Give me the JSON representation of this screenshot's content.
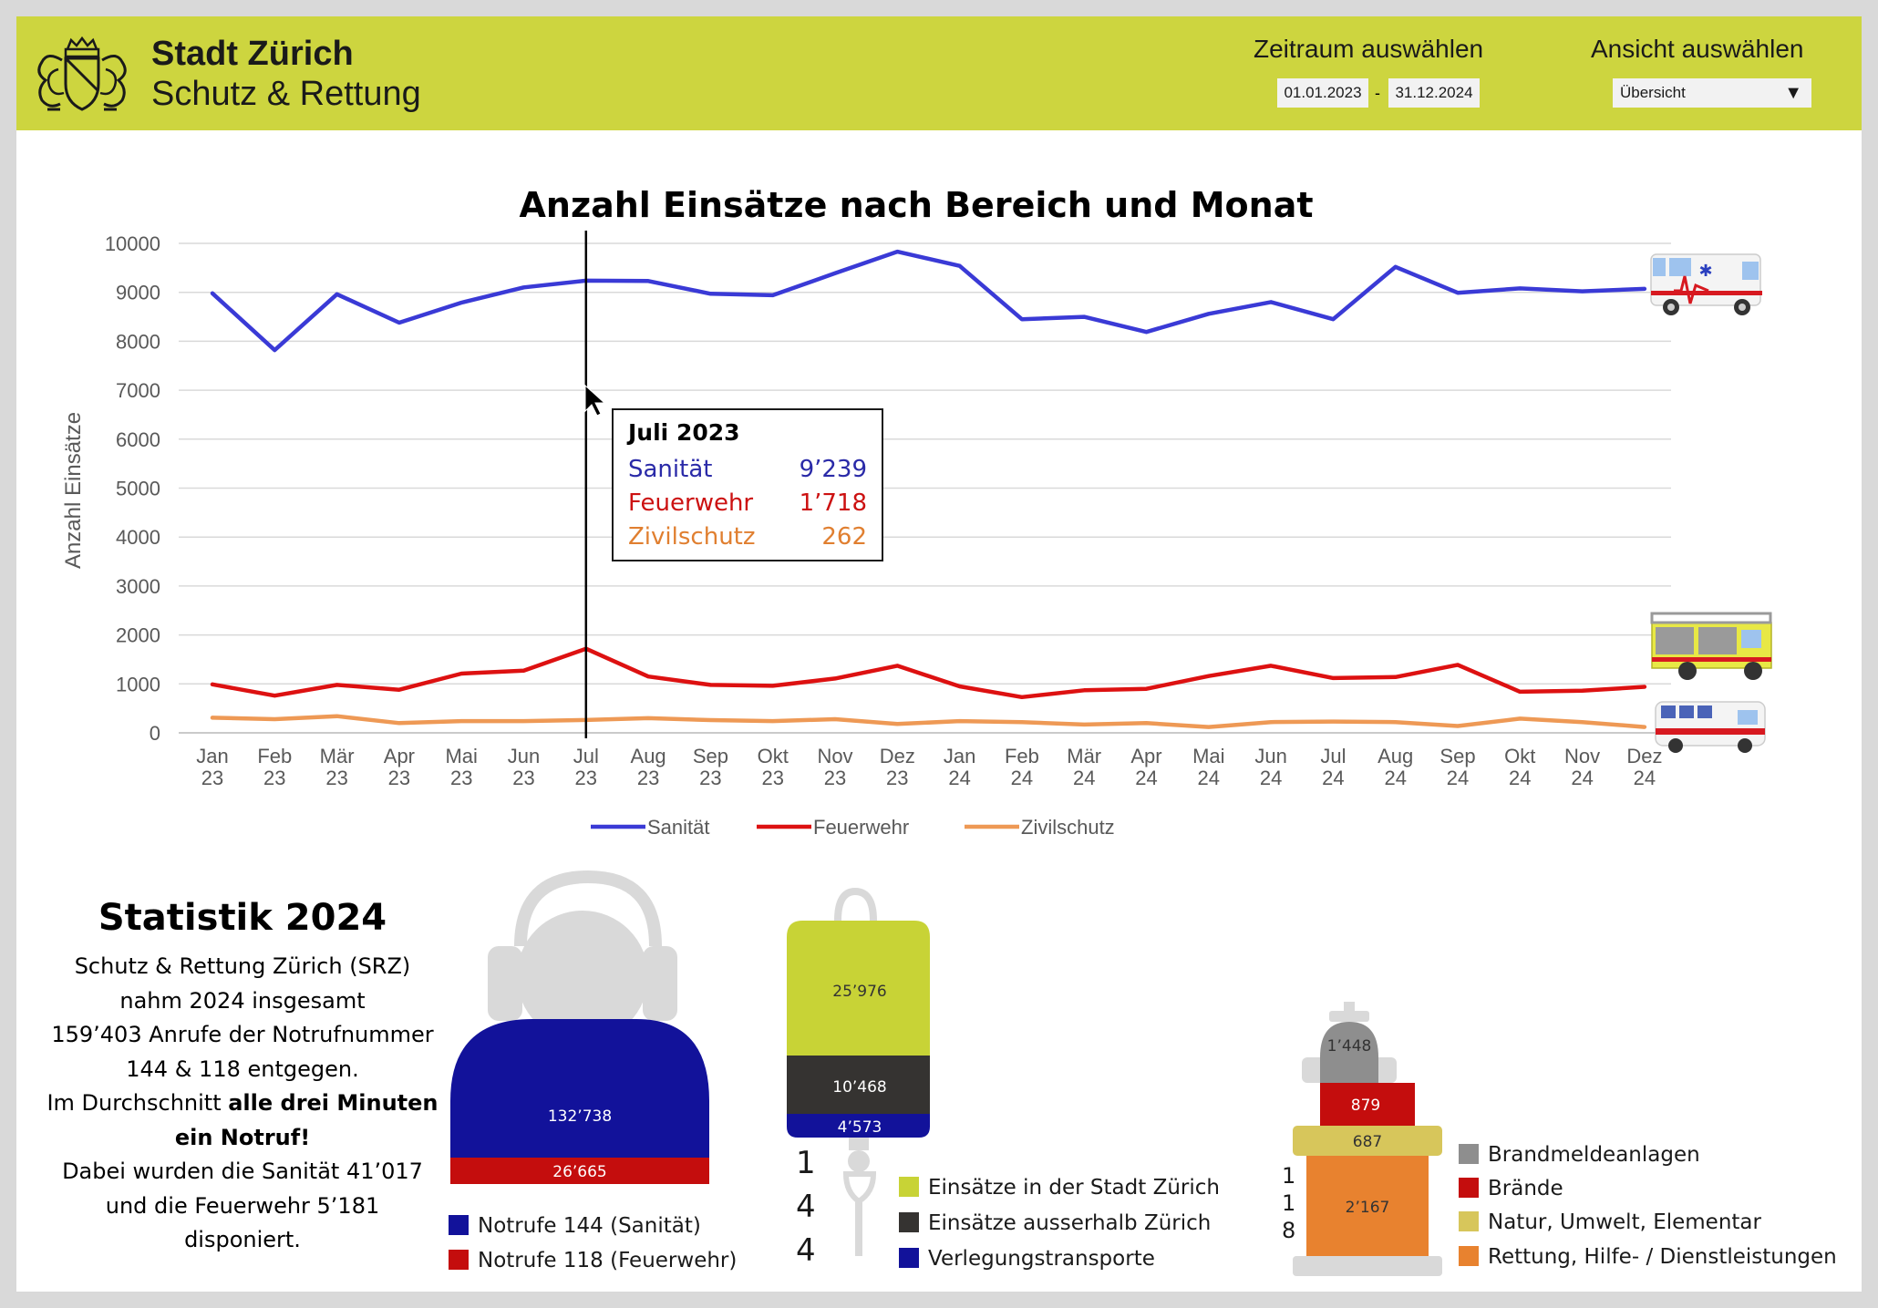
{
  "header": {
    "org_name": "Stadt Zürich",
    "org_unit": "Schutz & Rettung",
    "period_label": "Zeitraum auswählen",
    "date_from": "01.01.2023",
    "date_separator": "-",
    "date_to": "31.12.2024",
    "view_label": "Ansicht auswählen",
    "view_value": "Übersicht",
    "dropdown_icon": "triangle-down-icon"
  },
  "chart_data": {
    "type": "line",
    "title": "Anzahl Einsätze nach Bereich und Monat",
    "ylabel": "Anzahl Einsätze",
    "xlabel": "",
    "ylim": [
      0,
      10000
    ],
    "yticks": [
      0,
      1000,
      2000,
      3000,
      4000,
      5000,
      6000,
      7000,
      8000,
      9000,
      10000
    ],
    "grid": true,
    "legend": "bottom",
    "categories": [
      [
        "Jan",
        "23"
      ],
      [
        "Feb",
        "23"
      ],
      [
        "Mär",
        "23"
      ],
      [
        "Apr",
        "23"
      ],
      [
        "Mai",
        "23"
      ],
      [
        "Jun",
        "23"
      ],
      [
        "Jul",
        "23"
      ],
      [
        "Aug",
        "23"
      ],
      [
        "Sep",
        "23"
      ],
      [
        "Okt",
        "23"
      ],
      [
        "Nov",
        "23"
      ],
      [
        "Dez",
        "23"
      ],
      [
        "Jan",
        "24"
      ],
      [
        "Feb",
        "24"
      ],
      [
        "Mär",
        "24"
      ],
      [
        "Apr",
        "24"
      ],
      [
        "Mai",
        "24"
      ],
      [
        "Jun",
        "24"
      ],
      [
        "Jul",
        "24"
      ],
      [
        "Aug",
        "24"
      ],
      [
        "Sep",
        "24"
      ],
      [
        "Okt",
        "24"
      ],
      [
        "Nov",
        "24"
      ],
      [
        "Dez",
        "24"
      ]
    ],
    "series": [
      {
        "name": "Sanität",
        "color": "#3a3ad6",
        "values": [
          8980,
          7820,
          8960,
          8380,
          8790,
          9100,
          9239,
          9230,
          8970,
          8940,
          9390,
          9830,
          9540,
          8450,
          8500,
          8190,
          8560,
          8800,
          8450,
          9520,
          8990,
          9080,
          9020,
          9070
        ]
      },
      {
        "name": "Feuerwehr",
        "color": "#dd1111",
        "values": [
          990,
          760,
          980,
          880,
          1210,
          1270,
          1718,
          1150,
          980,
          960,
          1110,
          1370,
          950,
          730,
          870,
          900,
          1160,
          1370,
          1120,
          1140,
          1390,
          840,
          860,
          940
        ]
      },
      {
        "name": "Zivilschutz",
        "color": "#ee9955",
        "values": [
          310,
          280,
          340,
          200,
          240,
          240,
          262,
          300,
          260,
          240,
          280,
          180,
          240,
          220,
          170,
          200,
          120,
          220,
          230,
          220,
          140,
          290,
          220,
          120
        ]
      }
    ],
    "highlight_index": 6,
    "tooltip": {
      "title": "Juli 2023",
      "rows": [
        {
          "label": "Sanität",
          "value": "9’239",
          "color": "#2a2aa8"
        },
        {
          "label": "Feuerwehr",
          "value": "1’718",
          "color": "#cc1111"
        },
        {
          "label": "Zivilschutz",
          "value": "262",
          "color": "#e07f30"
        }
      ]
    },
    "vehicle_icons": [
      "ambulance-icon",
      "fire-truck-icon",
      "civil-protection-van-icon"
    ]
  },
  "stats": {
    "title": "Statistik 2024",
    "lines": [
      "Schutz & Rettung Zürich (SRZ)",
      "nahm 2024 insgesamt",
      "159’403 Anrufe der Notrufnummer",
      "144 & 118 entgegen."
    ],
    "line5_pre": "Im Durchschnitt ",
    "line5_bold": "alle drei Minuten",
    "line6_bold": "ein Notruf!",
    "lines_end": [
      "Dabei wurden die Sanität 41’017",
      "und die Feuerwehr 5’181",
      "disponiert."
    ]
  },
  "calls": {
    "icon": "call-center-agent-icon",
    "segments": [
      {
        "label": "132’738",
        "value": 132738,
        "color": "#12129a"
      },
      {
        "label": "26’665",
        "value": 26665,
        "color": "#c40d0d"
      }
    ],
    "legend": [
      {
        "label": "Notrufe 144 (Sanität)",
        "color": "#12129a"
      },
      {
        "label": "Notrufe 118 (Feuerwehr)",
        "color": "#c40d0d"
      }
    ]
  },
  "sanitaet": {
    "icon": "infusion-bag-icon",
    "number_digits": [
      "1",
      "4",
      "4"
    ],
    "segments": [
      {
        "label": "25’976",
        "value": 25976,
        "color": "#c8d336"
      },
      {
        "label": "10’468",
        "value": 10468,
        "color": "#353331"
      },
      {
        "label": "4’573",
        "value": 4573,
        "color": "#12129a"
      }
    ],
    "legend": [
      {
        "label": "Einsätze in der Stadt Zürich",
        "color": "#c8d336"
      },
      {
        "label": "Einsätze ausserhalb Zürich",
        "color": "#353331"
      },
      {
        "label": "Verlegungstransporte",
        "color": "#12129a"
      }
    ]
  },
  "feuerwehr": {
    "icon": "fire-hydrant-icon",
    "number_digits": [
      "1",
      "1",
      "8"
    ],
    "segments": [
      {
        "label": "1’448",
        "value": 1448,
        "color": "#8e8e8e"
      },
      {
        "label": "879",
        "value": 879,
        "color": "#c40d0d"
      },
      {
        "label": "687",
        "value": 687,
        "color": "#d7c65b"
      },
      {
        "label": "2’167",
        "value": 2167,
        "color": "#e8822f"
      }
    ],
    "legend": [
      {
        "label": "Brandmeldeanlagen",
        "color": "#8e8e8e"
      },
      {
        "label": "Brände",
        "color": "#c40d0d"
      },
      {
        "label": "Natur, Umwelt, Elementar",
        "color": "#d7c65b"
      },
      {
        "label": "Rettung, Hilfe- / Dienstleistungen",
        "color": "#e8822f"
      }
    ]
  }
}
